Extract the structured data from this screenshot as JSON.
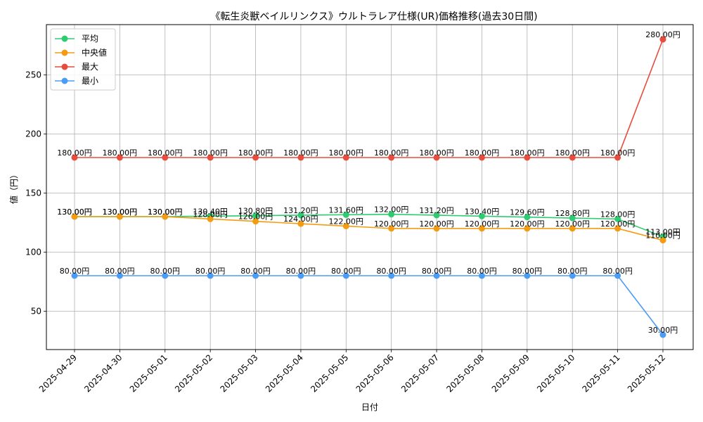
{
  "chart_data": {
    "type": "line",
    "title": "《転生炎獣ベイルリンクス》ウルトラレア仕様(UR)価格推移(過去30日間)",
    "xlabel": "日付",
    "ylabel": "値（円）",
    "ylim": [
      17.5,
      292.5
    ],
    "yticks": [
      50,
      100,
      150,
      200,
      250
    ],
    "grid": true,
    "legend_position": "top-left",
    "label_suffix": "円",
    "categories": [
      "2025-04-29",
      "2025-04-30",
      "2025-05-01",
      "2025-05-02",
      "2025-05-03",
      "2025-05-04",
      "2025-05-05",
      "2025-05-06",
      "2025-05-07",
      "2025-05-08",
      "2025-05-09",
      "2025-05-10",
      "2025-05-11",
      "2025-05-12"
    ],
    "series": [
      {
        "name": "平均",
        "color": "#2ecc71",
        "values": [
          130.0,
          130.0,
          130.0,
          130.4,
          130.8,
          131.2,
          131.6,
          132.0,
          131.2,
          130.4,
          129.6,
          128.8,
          128.0,
          113.0
        ],
        "labels": [
          "130.00円",
          "130.00円",
          "130.00円",
          "130.40円",
          "130.80円",
          "131.20円",
          "131.60円",
          "132.00円",
          "131.20円",
          "130.40円",
          "129.60円",
          "128.80円",
          "128.00円",
          "113.00円"
        ]
      },
      {
        "name": "中央値",
        "color": "#f39c12",
        "values": [
          130,
          130,
          130,
          128,
          126,
          124,
          122,
          120,
          120,
          120,
          120,
          120,
          120,
          110
        ],
        "labels": [
          "130.00円",
          "130.00円",
          "130.00円",
          "128.00円",
          "126.00円",
          "124.00円",
          "122.00円",
          "120.00円",
          "120.00円",
          "120.00円",
          "120.00円",
          "120.00円",
          "120.00円",
          "110.00円"
        ]
      },
      {
        "name": "最大",
        "color": "#e74c3c",
        "values": [
          180,
          180,
          180,
          180,
          180,
          180,
          180,
          180,
          180,
          180,
          180,
          180,
          180,
          280
        ],
        "labels": [
          "180.00円",
          "180.00円",
          "180.00円",
          "180.00円",
          "180.00円",
          "180.00円",
          "180.00円",
          "180.00円",
          "180.00円",
          "180.00円",
          "180.00円",
          "180.00円",
          "180.00円",
          "280.00円"
        ]
      },
      {
        "name": "最小",
        "color": "#4a9cf5",
        "values": [
          80,
          80,
          80,
          80,
          80,
          80,
          80,
          80,
          80,
          80,
          80,
          80,
          80,
          30
        ],
        "labels": [
          "80.00円",
          "80.00円",
          "80.00円",
          "80.00円",
          "80.00円",
          "80.00円",
          "80.00円",
          "80.00円",
          "80.00円",
          "80.00円",
          "80.00円",
          "80.00円",
          "80.00円",
          "30.00円"
        ]
      }
    ]
  }
}
